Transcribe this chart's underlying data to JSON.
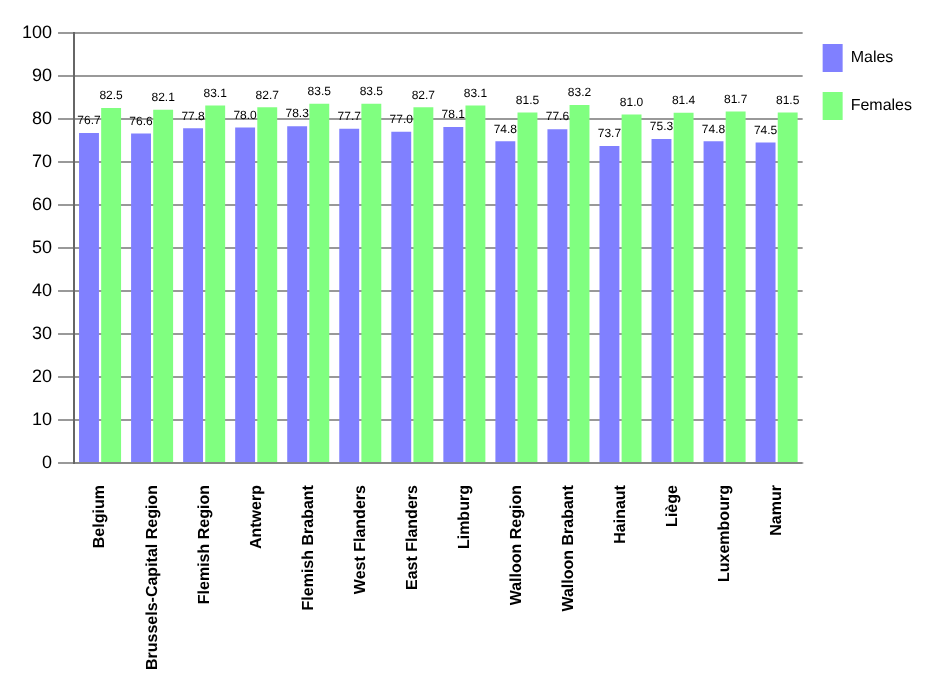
{
  "chart_data": {
    "type": "bar",
    "categories": [
      "Belgium",
      "Brussels-Capital Region",
      "Flemish Region",
      "Antwerp",
      "Flemish Brabant",
      "West Flanders",
      "East Flanders",
      "Limburg",
      "Walloon Region",
      "Walloon Brabant",
      "Hainaut",
      "Liège",
      "Luxembourg",
      "Namur"
    ],
    "series": [
      {
        "name": "Males",
        "color": "#8080ff",
        "values": [
          76.7,
          76.6,
          77.8,
          78.0,
          78.3,
          77.7,
          77.0,
          78.1,
          74.8,
          77.6,
          73.7,
          75.3,
          74.8,
          74.5
        ],
        "value_labels": [
          "76.7",
          "76.6",
          "77.8",
          "78.0",
          "78.3",
          "77.7",
          "77.0",
          "78.1",
          "74.8",
          "77.6",
          "73.7",
          "75.3",
          "74.8",
          "74.5"
        ]
      },
      {
        "name": "Females",
        "color": "#80ff80",
        "values": [
          82.5,
          82.1,
          83.1,
          82.7,
          83.5,
          83.5,
          82.7,
          83.1,
          81.5,
          83.2,
          81.0,
          81.4,
          81.7,
          81.5
        ],
        "value_labels": [
          "82.5",
          "82.1",
          "83.1",
          "82.7",
          "83.5",
          "83.5",
          "82.7",
          "83.1",
          "81.5",
          "83.2",
          "81.0",
          "81.4",
          "81.7",
          "81.5"
        ]
      }
    ],
    "ylim": [
      0,
      100
    ],
    "yticks": [
      0,
      10,
      20,
      30,
      40,
      50,
      60,
      70,
      80,
      90,
      100
    ],
    "grid": "y",
    "legend": "right"
  }
}
